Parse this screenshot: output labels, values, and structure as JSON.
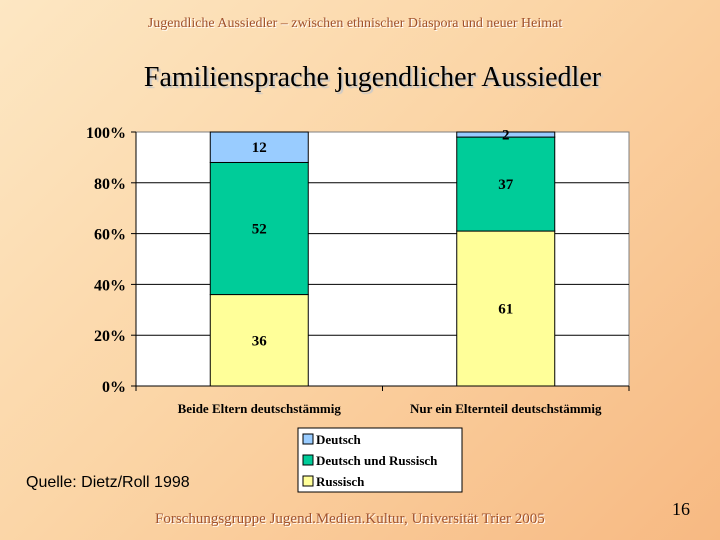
{
  "slide": {
    "header": "Jugendliche Aussiedler – zwischen ethnischer Diaspora und neuer Heimat",
    "title": "Familiensprache jugendlicher Aussiedler",
    "source": "Quelle: Dietz/Roll 1998",
    "footer": "Forschungsgruppe Jugend.Medien.Kultur, Universität Trier 2005",
    "page_number": "16"
  },
  "chart_data": {
    "type": "bar",
    "stacked": true,
    "percent": true,
    "title": "Familiensprache jugendlicher Aussiedler",
    "categories": [
      "Beide Eltern deutschstämmig",
      "Nur ein Elternteil deutschstämmig"
    ],
    "series": [
      {
        "name": "Russisch",
        "values": [
          36,
          61
        ],
        "color": "#ffff99"
      },
      {
        "name": "Deutsch und Russisch",
        "values": [
          52,
          37
        ],
        "color": "#00cc99"
      },
      {
        "name": "Deutsch",
        "values": [
          12,
          2
        ],
        "color": "#99ccff"
      }
    ],
    "legend_order": [
      "Deutsch",
      "Deutsch und Russisch",
      "Russisch"
    ],
    "y_ticks": [
      "0%",
      "20%",
      "40%",
      "60%",
      "80%",
      "100%"
    ],
    "ylim": [
      0,
      100
    ],
    "xlabel": "",
    "ylabel": "",
    "grid": true,
    "legend_position": "bottom"
  }
}
